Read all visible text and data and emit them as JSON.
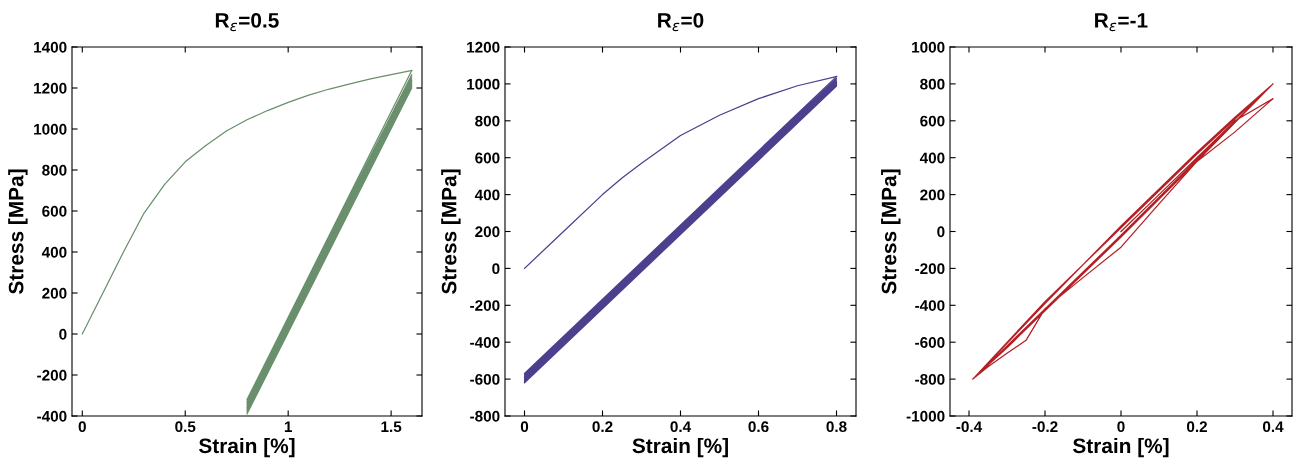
{
  "chart_data": [
    {
      "type": "line",
      "title": "R$_{ε}$=0.5",
      "xlabel": "Strain [%]",
      "ylabel": "Stress [MPa]",
      "xlim": [
        -0.05,
        1.65
      ],
      "xticks": [
        0,
        0.5,
        1,
        1.5
      ],
      "ylim": [
        -400,
        1400
      ],
      "yticks": [
        -400,
        -200,
        0,
        200,
        400,
        600,
        800,
        1000,
        1200,
        1400
      ],
      "series": [
        {
          "color": "#6a8f6c",
          "x": [
            0,
            0.1,
            0.2,
            0.3,
            0.4,
            0.5,
            0.6,
            0.7,
            0.8,
            0.9,
            1.0,
            1.1,
            1.2,
            1.3,
            1.4,
            1.5,
            1.6
          ],
          "values": [
            0,
            200,
            400,
            590,
            730,
            840,
            920,
            990,
            1045,
            1090,
            1130,
            1165,
            1195,
            1220,
            1245,
            1265,
            1285
          ]
        },
        {
          "color": "#6a8f6c",
          "x": [
            1.6,
            0.8,
            1.6,
            0.8,
            1.6,
            0.8,
            1.6,
            0.8,
            1.6,
            0.8,
            1.6,
            0.8,
            1.6,
            0.8,
            1.6,
            0.8,
            1.6,
            0.8,
            1.6,
            0.8
          ],
          "values": [
            1285,
            -320,
            1265,
            -330,
            1255,
            -338,
            1245,
            -345,
            1237,
            -352,
            1230,
            -358,
            1223,
            -365,
            1215,
            -372,
            1208,
            -380,
            1200,
            -390
          ]
        }
      ]
    },
    {
      "type": "line",
      "title": "R$_{ε}$=0",
      "xlabel": "Strain [%]",
      "ylabel": "Stress [MPa]",
      "xlim": [
        -0.05,
        0.85
      ],
      "xticks": [
        0,
        0.2,
        0.4,
        0.6,
        0.8
      ],
      "ylim": [
        -800,
        1200
      ],
      "yticks": [
        -800,
        -600,
        -400,
        -200,
        0,
        200,
        400,
        600,
        800,
        1000,
        1200
      ],
      "series": [
        {
          "color": "#4b3f8e",
          "x": [
            0,
            0.1,
            0.2,
            0.25,
            0.3,
            0.4,
            0.5,
            0.6,
            0.7,
            0.8
          ],
          "values": [
            0,
            200,
            400,
            490,
            570,
            720,
            830,
            920,
            990,
            1040
          ]
        },
        {
          "color": "#4b3f8e",
          "x": [
            0.8,
            0,
            0.8,
            0,
            0.8,
            0,
            0.8,
            0,
            0.8,
            0,
            0.8,
            0,
            0.8,
            0,
            0.8,
            0,
            0.8,
            0,
            0.8,
            0
          ],
          "values": [
            1040,
            -570,
            1030,
            -578,
            1022,
            -585,
            1015,
            -590,
            1010,
            -596,
            1005,
            -601,
            1000,
            -606,
            996,
            -611,
            992,
            -616,
            988,
            -620
          ]
        }
      ]
    },
    {
      "type": "line",
      "title": "R$_{ε}$=-1",
      "xlabel": "Strain [%]",
      "ylabel": "Stress [MPa]",
      "xlim": [
        -0.45,
        0.45
      ],
      "xticks": [
        -0.4,
        -0.2,
        0,
        0.2,
        0.4
      ],
      "ylim": [
        -1000,
        1000
      ],
      "yticks": [
        -1000,
        -800,
        -600,
        -400,
        -200,
        0,
        200,
        400,
        600,
        800,
        1000
      ],
      "series": [
        {
          "color": "#b41f24",
          "x": [
            0,
            0.1,
            0.2,
            0.3,
            0.4,
            0.3,
            0.2,
            0.1,
            0,
            -0.1,
            -0.2,
            -0.25,
            -0.3,
            -0.35,
            -0.39,
            -0.2,
            0,
            0.2,
            0.3,
            0.4,
            0.2,
            0,
            -0.2,
            -0.3,
            -0.39,
            -0.2,
            0,
            0.2,
            0.3,
            0.4,
            0.2,
            0,
            -0.2,
            -0.3,
            -0.39,
            -0.2,
            0,
            0.2,
            0.3,
            0.4,
            0.2,
            0,
            -0.2,
            -0.3,
            -0.39
          ],
          "values": [
            0,
            200,
            400,
            600,
            720,
            540,
            380,
            150,
            -85,
            -250,
            -418,
            -590,
            -660,
            -733,
            -800,
            -390,
            30,
            430,
            620,
            800,
            380,
            -30,
            -430,
            -630,
            -800,
            -385,
            25,
            425,
            615,
            800,
            385,
            -25,
            -425,
            -625,
            -800,
            -380,
            20,
            420,
            610,
            800,
            390,
            -20,
            -420,
            -620,
            -800
          ]
        }
      ]
    }
  ]
}
